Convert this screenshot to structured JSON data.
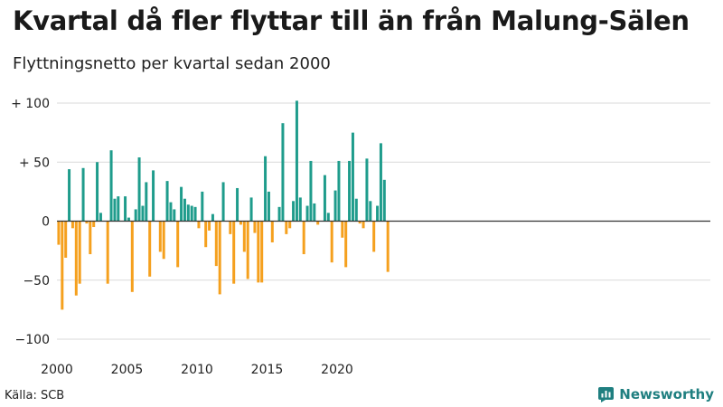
{
  "header": {
    "title": "Kvartal då fler flyttar till än från Malung-Sälen",
    "subtitle": "Flyttningsnetto per kvartal sedan 2000"
  },
  "footer": {
    "source": "Källa: SCB",
    "brand": "Newsworthy"
  },
  "colors": {
    "positive": "#1f9c8c",
    "negative": "#f5a01e",
    "grid": "#d9d9d9",
    "axis": "#333333",
    "brand": "#1f7f80"
  },
  "chart_data": {
    "type": "bar",
    "title": "Kvartal då fler flyttar till än från Malung-Sälen",
    "subtitle": "Flyttningsnetto per kvartal sedan 2000",
    "x_start": "2000Q1",
    "x_ticks": [
      "2000",
      "2005",
      "2010",
      "2015",
      "2020"
    ],
    "y_ticks": [
      {
        "value": 100,
        "label": "+ 100"
      },
      {
        "value": 50,
        "label": "+  50"
      },
      {
        "value": 0,
        "label": "0"
      },
      {
        "value": -50,
        "label": "−50"
      },
      {
        "value": -100,
        "label": "−100"
      }
    ],
    "ylim": [
      -100,
      100
    ],
    "grid": true,
    "values": [
      -20,
      -75,
      -31,
      44,
      -6,
      -63,
      -53,
      45,
      -2,
      -28,
      -5,
      50,
      7,
      0,
      -53,
      60,
      19,
      21,
      0,
      21,
      3,
      -60,
      10,
      54,
      13,
      33,
      -47,
      43,
      0,
      -26,
      -32,
      34,
      16,
      10,
      -39,
      29,
      19,
      14,
      13,
      12,
      -6,
      25,
      -22,
      -8,
      6,
      -38,
      -62,
      33,
      0,
      -11,
      -53,
      28,
      -3,
      -26,
      -49,
      20,
      -10,
      -52,
      -52,
      55,
      25,
      -18,
      0,
      12,
      83,
      -11,
      -6,
      17,
      102,
      20,
      -28,
      13,
      51,
      15,
      -3,
      0,
      39,
      7,
      -35,
      26,
      51,
      -14,
      -39,
      51,
      75,
      19,
      -2,
      -6,
      53,
      17,
      -26,
      13,
      66,
      35,
      -43
    ]
  }
}
